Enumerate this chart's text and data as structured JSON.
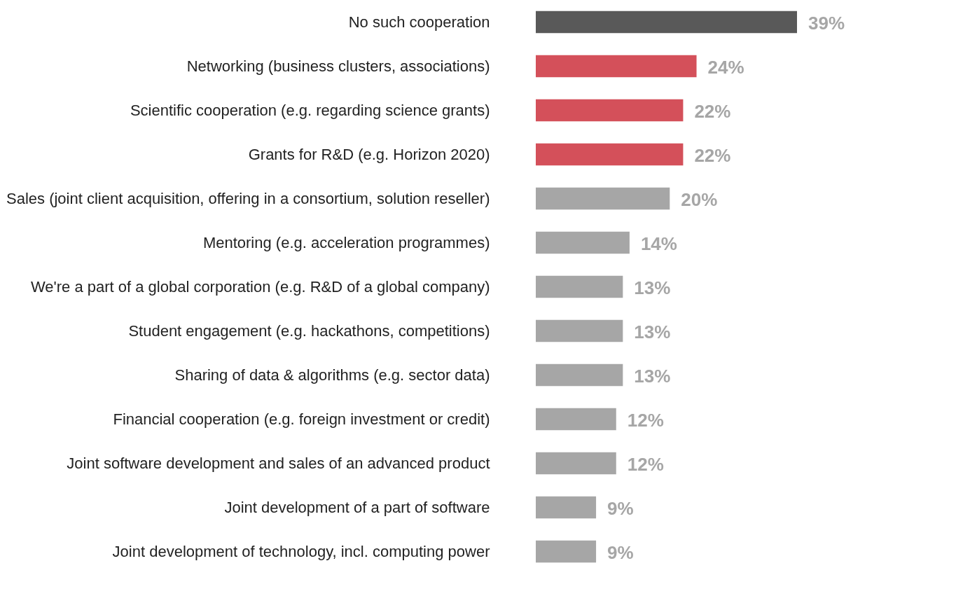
{
  "chart_data": {
    "type": "bar",
    "orientation": "horizontal",
    "categories": [
      "No such cooperation",
      "Networking (business clusters, associations)",
      "Scientific cooperation (e.g. regarding science grants)",
      "Grants for R&D (e.g. Horizon 2020)",
      "Sales (joint client acquisition, offering in a consortium, solution reseller)",
      "Mentoring (e.g. acceleration programmes)",
      "We're a part of a global corporation (e.g. R&D of a global company)",
      "Student engagement (e.g. hackathons, competitions)",
      "Sharing of data & algorithms (e.g. sector data)",
      "Financial cooperation (e.g. foreign investment or credit)",
      "Joint software development and sales of an advanced product",
      "Joint development of a part of software",
      "Joint development of technology, incl. computing power"
    ],
    "values": [
      39,
      24,
      22,
      22,
      20,
      14,
      13,
      13,
      13,
      12,
      12,
      9,
      9
    ],
    "value_labels": [
      "39%",
      "24%",
      "22%",
      "22%",
      "20%",
      "14%",
      "13%",
      "13%",
      "13%",
      "12%",
      "12%",
      "9%",
      "9%"
    ],
    "colors": [
      "#595959",
      "#d4505a",
      "#d4505a",
      "#d4505a",
      "#a6a6a6",
      "#a6a6a6",
      "#a6a6a6",
      "#a6a6a6",
      "#a6a6a6",
      "#a6a6a6",
      "#a6a6a6",
      "#a6a6a6",
      "#a6a6a6"
    ]
  }
}
